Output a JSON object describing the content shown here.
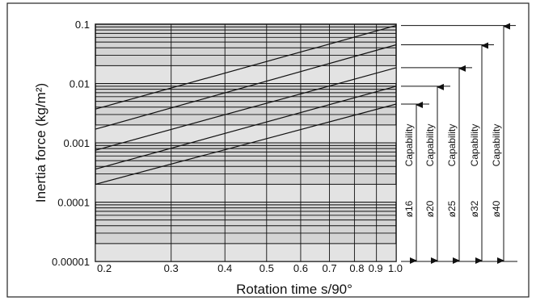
{
  "chart_data": {
    "type": "line",
    "xlabel": "Rotation time s/90°",
    "ylabel": "Inertia force (kg/m²)",
    "xscale": "log",
    "yscale": "log",
    "xlim": [
      0.2,
      1.0
    ],
    "ylim": [
      1e-05,
      0.1
    ],
    "grid": true,
    "colors": {
      "background": "#ffffff",
      "plot_area": "#d4d4d4",
      "band": "#e3e3e3",
      "line": "#111111"
    },
    "x_tick_labels": [
      {
        "value": 0.2,
        "label": "0.2"
      },
      {
        "value": 0.3,
        "label": "0.3"
      },
      {
        "value": 0.4,
        "label": "0.4"
      },
      {
        "value": 0.5,
        "label": "0.5"
      },
      {
        "value": 0.6,
        "label": "0.6"
      },
      {
        "value": 0.7,
        "label": "0.7"
      },
      {
        "value": 0.8,
        "label": "0.8"
      },
      {
        "value": 0.9,
        "label": "0.9"
      },
      {
        "value": 1.0,
        "label": "1.0"
      }
    ],
    "y_tick_labels": [
      {
        "value": 0.1,
        "label": "0.1"
      },
      {
        "value": 0.01,
        "label": "0.01"
      },
      {
        "value": 0.001,
        "label": "0.001"
      },
      {
        "value": 0.0001,
        "label": "0.0001"
      },
      {
        "value": 1e-05,
        "label": "0.00001"
      }
    ],
    "series": [
      {
        "label": "ø16",
        "caption": "Capability",
        "x": [
          0.2,
          1.0
        ],
        "y": [
          0.0002,
          0.0045
        ]
      },
      {
        "label": "ø20",
        "caption": "Capability",
        "x": [
          0.2,
          1.0
        ],
        "y": [
          0.00036,
          0.009
        ]
      },
      {
        "label": "ø25",
        "caption": "Capability",
        "x": [
          0.2,
          1.0
        ],
        "y": [
          0.00075,
          0.0185
        ]
      },
      {
        "label": "ø32",
        "caption": "Capability",
        "x": [
          0.2,
          1.0
        ],
        "y": [
          0.0017,
          0.045
        ]
      },
      {
        "label": "ø40",
        "caption": "Capability",
        "x": [
          0.2,
          1.0
        ],
        "y": [
          0.0037,
          0.095
        ]
      }
    ]
  }
}
